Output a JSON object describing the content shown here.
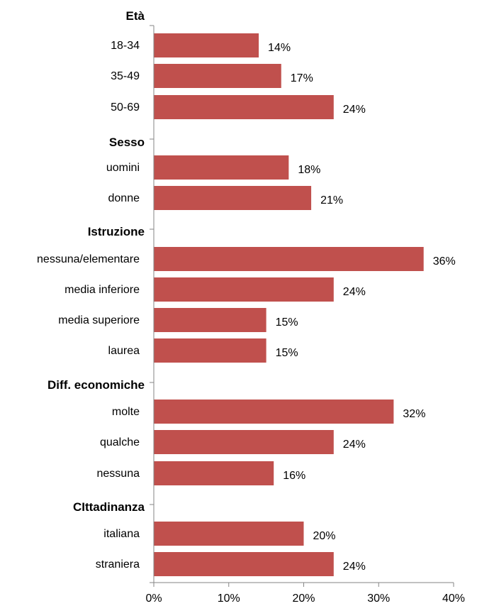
{
  "chart_data": {
    "type": "bar",
    "orientation": "horizontal",
    "bar_color": "#C0504D",
    "xlim": [
      0,
      40
    ],
    "x_tick_labels": [
      "0%",
      "10%",
      "20%",
      "30%",
      "40%"
    ],
    "groups": [
      {
        "label": "Età",
        "items": [
          {
            "category": "18-34",
            "value": 14,
            "value_label": "14%"
          },
          {
            "category": "35-49",
            "value": 17,
            "value_label": "17%"
          },
          {
            "category": "50-69",
            "value": 24,
            "value_label": "24%"
          }
        ]
      },
      {
        "label": "Sesso",
        "items": [
          {
            "category": "uomini",
            "value": 18,
            "value_label": "18%"
          },
          {
            "category": "donne",
            "value": 21,
            "value_label": "21%"
          }
        ]
      },
      {
        "label": "Istruzione",
        "items": [
          {
            "category": "nessuna/elementare",
            "value": 36,
            "value_label": "36%"
          },
          {
            "category": "media inferiore",
            "value": 24,
            "value_label": "24%"
          },
          {
            "category": "media superiore",
            "value": 15,
            "value_label": "15%"
          },
          {
            "category": "laurea",
            "value": 15,
            "value_label": "15%"
          }
        ]
      },
      {
        "label": "Diff. economiche",
        "items": [
          {
            "category": "molte",
            "value": 32,
            "value_label": "32%"
          },
          {
            "category": "qualche",
            "value": 24,
            "value_label": "24%"
          },
          {
            "category": "nessuna",
            "value": 16,
            "value_label": "16%"
          }
        ]
      },
      {
        "label": "CIttadinanza",
        "items": [
          {
            "category": "italiana",
            "value": 20,
            "value_label": "20%"
          },
          {
            "category": "straniera",
            "value": 24,
            "value_label": "24%"
          }
        ]
      }
    ]
  }
}
